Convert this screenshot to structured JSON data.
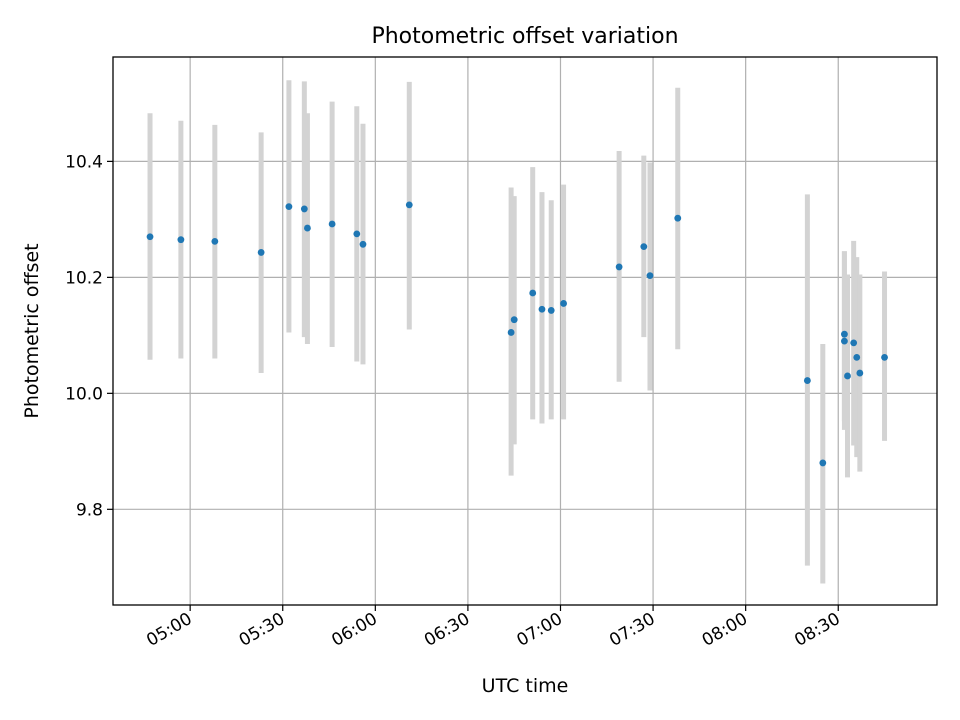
{
  "chart_data": {
    "type": "scatter",
    "title": "Photometric offset variation",
    "xlabel": "UTC time",
    "ylabel": "Photometric offset",
    "grid": true,
    "xlim": [
      "04:35",
      "09:02"
    ],
    "ylim": [
      9.635,
      10.58
    ],
    "x_ticks": [
      "05:00",
      "05:30",
      "06:00",
      "06:30",
      "07:00",
      "07:30",
      "08:00",
      "08:30"
    ],
    "y_ticks": [
      9.8,
      10.0,
      10.2,
      10.4
    ],
    "colors": {
      "points": "#1f77b4",
      "error_bars": "#d3d3d3",
      "grid": "#b0b0b0"
    },
    "points": [
      {
        "x": "04:47",
        "y": 10.27,
        "ylo": 10.058,
        "yhi": 10.483
      },
      {
        "x": "04:57",
        "y": 10.265,
        "ylo": 10.06,
        "yhi": 10.47
      },
      {
        "x": "05:08",
        "y": 10.262,
        "ylo": 10.06,
        "yhi": 10.463
      },
      {
        "x": "05:23",
        "y": 10.243,
        "ylo": 10.035,
        "yhi": 10.45
      },
      {
        "x": "05:32",
        "y": 10.322,
        "ylo": 10.105,
        "yhi": 10.54
      },
      {
        "x": "05:37",
        "y": 10.318,
        "ylo": 10.097,
        "yhi": 10.538
      },
      {
        "x": "05:38",
        "y": 10.285,
        "ylo": 10.085,
        "yhi": 10.483
      },
      {
        "x": "05:46",
        "y": 10.292,
        "ylo": 10.08,
        "yhi": 10.503
      },
      {
        "x": "05:54",
        "y": 10.275,
        "ylo": 10.055,
        "yhi": 10.495
      },
      {
        "x": "05:56",
        "y": 10.257,
        "ylo": 10.05,
        "yhi": 10.465
      },
      {
        "x": "06:11",
        "y": 10.325,
        "ylo": 10.11,
        "yhi": 10.537
      },
      {
        "x": "06:44",
        "y": 10.105,
        "ylo": 9.858,
        "yhi": 10.355
      },
      {
        "x": "06:45",
        "y": 10.127,
        "ylo": 9.912,
        "yhi": 10.34
      },
      {
        "x": "06:51",
        "y": 10.173,
        "ylo": 9.955,
        "yhi": 10.39
      },
      {
        "x": "06:54",
        "y": 10.145,
        "ylo": 9.948,
        "yhi": 10.347
      },
      {
        "x": "06:57",
        "y": 10.143,
        "ylo": 9.955,
        "yhi": 10.333
      },
      {
        "x": "07:01",
        "y": 10.155,
        "ylo": 9.955,
        "yhi": 10.36
      },
      {
        "x": "07:19",
        "y": 10.218,
        "ylo": 10.02,
        "yhi": 10.418
      },
      {
        "x": "07:27",
        "y": 10.253,
        "ylo": 10.097,
        "yhi": 10.41
      },
      {
        "x": "07:29",
        "y": 10.203,
        "ylo": 10.005,
        "yhi": 10.398
      },
      {
        "x": "07:38",
        "y": 10.302,
        "ylo": 10.076,
        "yhi": 10.527
      },
      {
        "x": "08:20",
        "y": 10.022,
        "ylo": 9.703,
        "yhi": 10.343
      },
      {
        "x": "08:25",
        "y": 9.88,
        "ylo": 9.672,
        "yhi": 10.085
      },
      {
        "x": "08:32",
        "y": 10.09,
        "ylo": 9.937,
        "yhi": 10.245
      },
      {
        "x": "08:32",
        "y": 10.102,
        "ylo": 9.952,
        "yhi": 10.245
      },
      {
        "x": "08:33",
        "y": 10.03,
        "ylo": 9.855,
        "yhi": 10.205
      },
      {
        "x": "08:35",
        "y": 10.087,
        "ylo": 9.91,
        "yhi": 10.263
      },
      {
        "x": "08:36",
        "y": 10.062,
        "ylo": 9.89,
        "yhi": 10.235
      },
      {
        "x": "08:37",
        "y": 10.035,
        "ylo": 9.865,
        "yhi": 10.205
      },
      {
        "x": "08:45",
        "y": 10.062,
        "ylo": 9.918,
        "yhi": 10.21
      }
    ]
  }
}
